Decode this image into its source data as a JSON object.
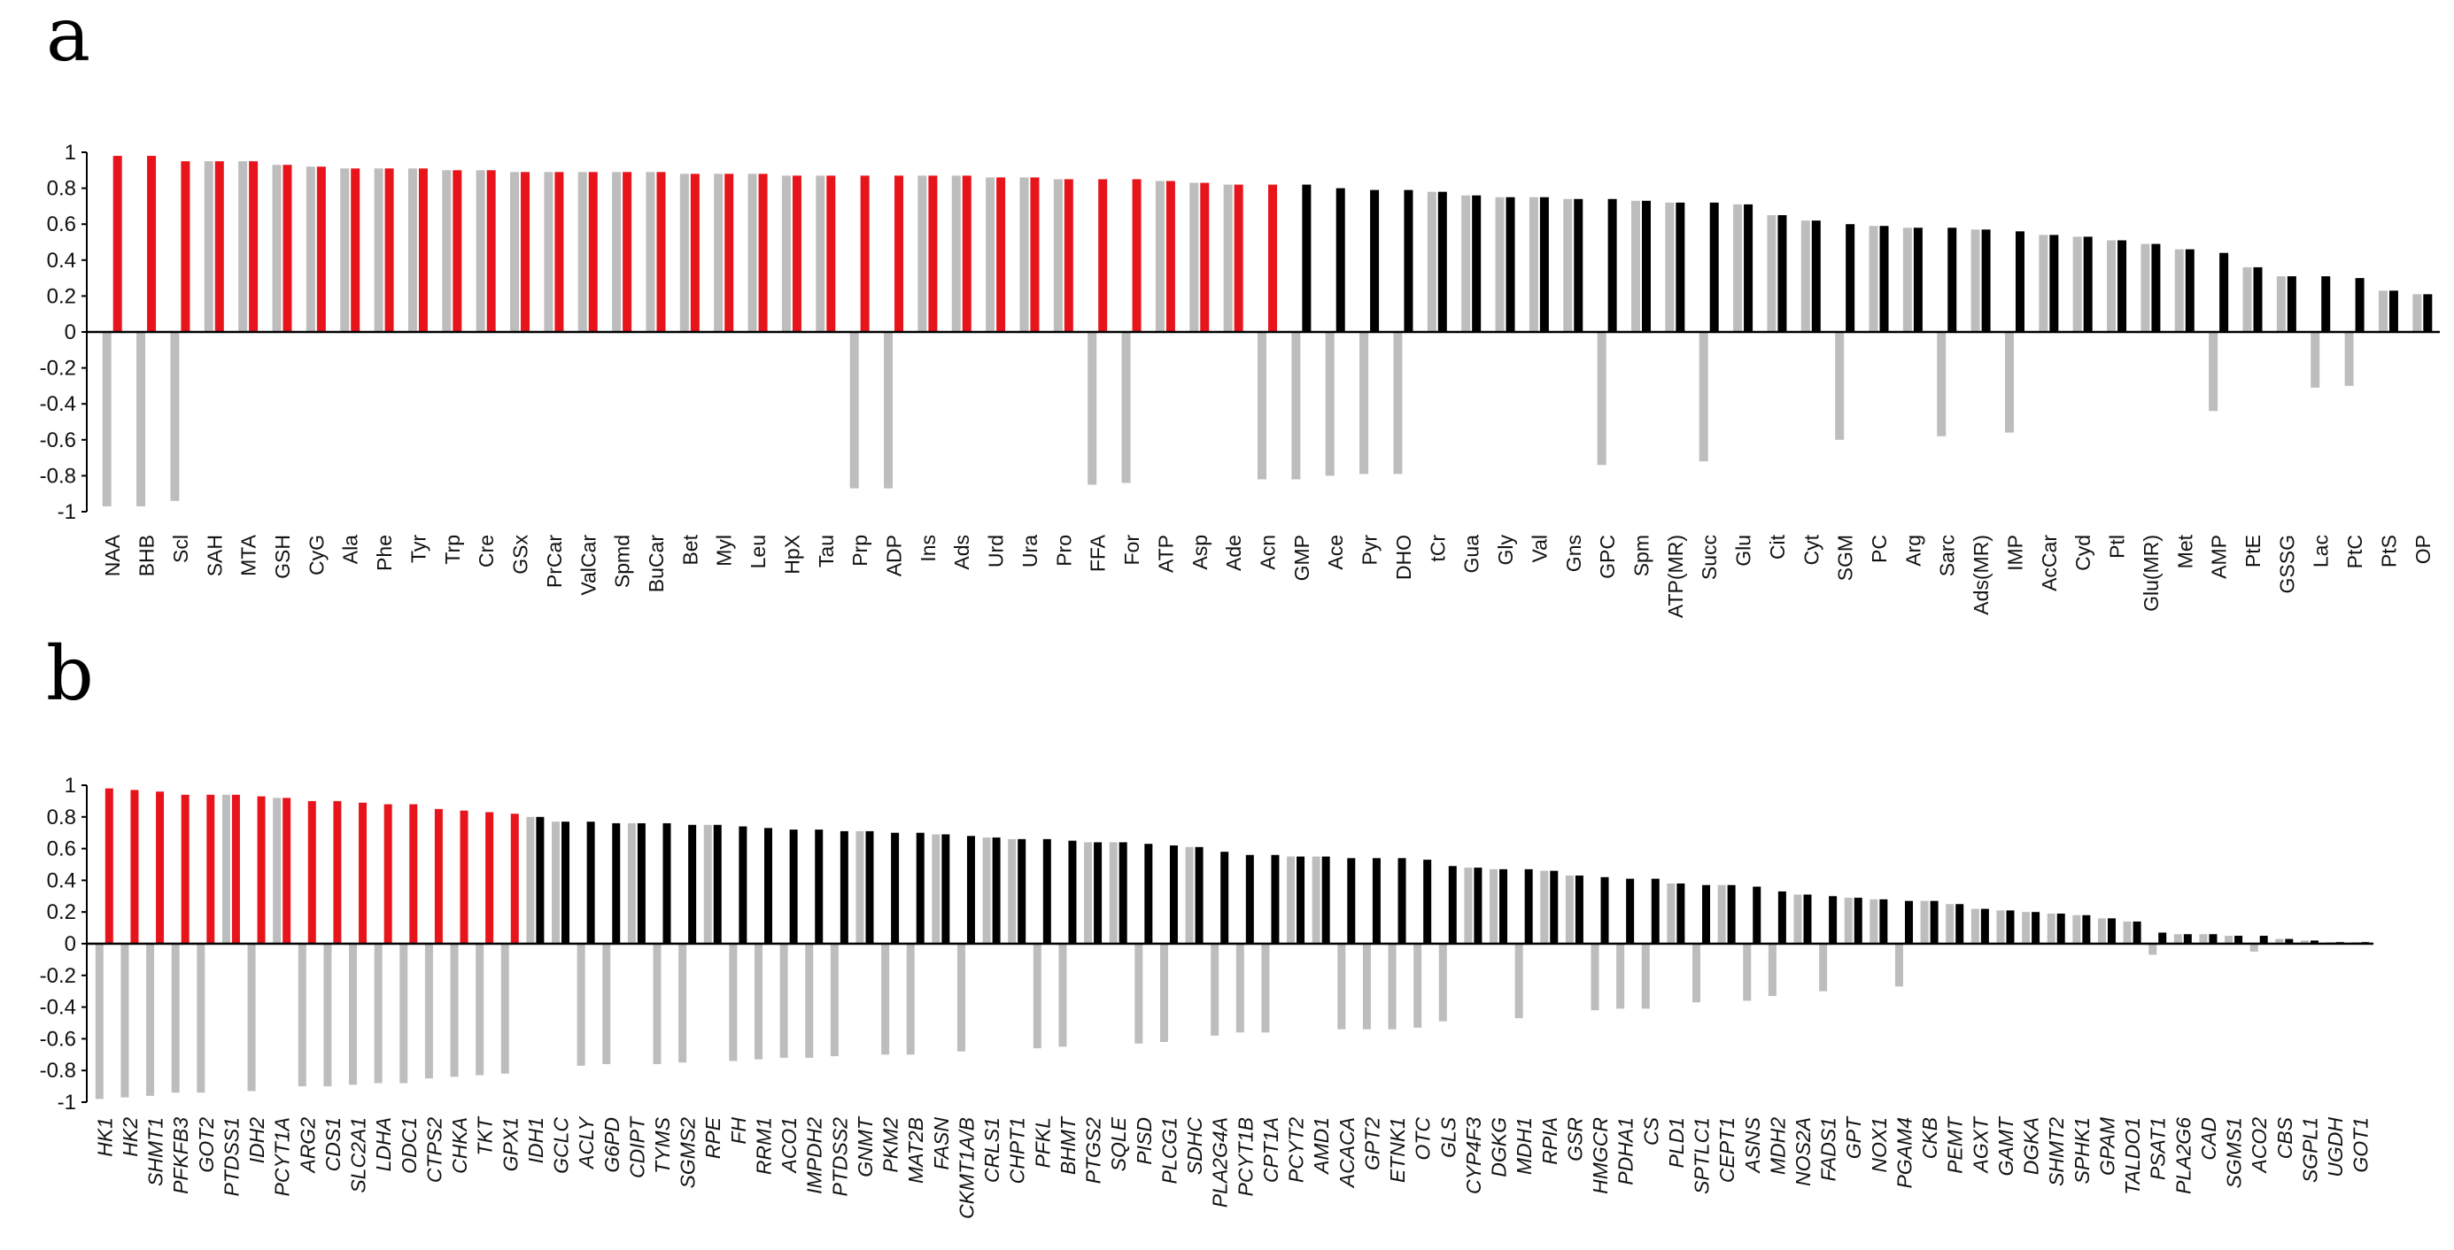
{
  "panels": [
    {
      "letter": "a"
    },
    {
      "letter": "b"
    }
  ],
  "colors": {
    "highlight": "#e8141b",
    "normal": "#000000",
    "secondary": "#bdbdbd",
    "axis": "#000000"
  },
  "chart_data": [
    {
      "type": "bar",
      "panel": "a",
      "title": "",
      "xlabel": "",
      "ylabel": "",
      "ylim": [
        -1,
        1
      ],
      "yticks": [
        "1",
        "0.8",
        "0.6",
        "0.4",
        "0.2",
        "0",
        "-0.2",
        "-0.4",
        "-0.6",
        "-0.8",
        "-1"
      ],
      "ytick_values": [
        1,
        0.8,
        0.6,
        0.4,
        0.2,
        0,
        -0.2,
        -0.4,
        -0.6,
        -0.8,
        -1
      ],
      "categories": [
        "NAA",
        "BHB",
        "Scl",
        "SAH",
        "MTA",
        "GSH",
        "CyG",
        "Ala",
        "Phe",
        "Tyr",
        "Trp",
        "Cre",
        "GSx",
        "PrCar",
        "ValCar",
        "Spmd",
        "BuCar",
        "Bet",
        "Myl",
        "Leu",
        "HpX",
        "Tau",
        "Prp",
        "ADP",
        "Ins",
        "Ads",
        "Urd",
        "Ura",
        "Pro",
        "FFA",
        "For",
        "ATP",
        "Asp",
        "Ade",
        "Acn",
        "GMP",
        "Ace",
        "Pyr",
        "DHO",
        "tCr",
        "Gua",
        "Gly",
        "Val",
        "Gns",
        "GPC",
        "Spm",
        "ATP(MR)",
        "Succ",
        "Glu",
        "Cit",
        "Cyt",
        "SGM",
        "PC",
        "Arg",
        "Sarc",
        "Ads(MR)",
        "IMP",
        "AcCar",
        "Cyd",
        "Ptl",
        "Glu(MR)",
        "Met",
        "AMP",
        "PtE",
        "GSSG",
        "Lac",
        "PtC",
        "PtS",
        "OP"
      ],
      "highlighted_count": 35,
      "series": [
        {
          "name": "primary",
          "values": [
            0.98,
            0.98,
            0.95,
            0.95,
            0.95,
            0.93,
            0.92,
            0.91,
            0.91,
            0.91,
            0.9,
            0.9,
            0.89,
            0.89,
            0.89,
            0.89,
            0.89,
            0.88,
            0.88,
            0.88,
            0.87,
            0.87,
            0.87,
            0.87,
            0.87,
            0.87,
            0.86,
            0.86,
            0.85,
            0.85,
            0.85,
            0.84,
            0.83,
            0.82,
            0.82,
            0.82,
            0.8,
            0.79,
            0.79,
            0.78,
            0.76,
            0.75,
            0.75,
            0.74,
            0.74,
            0.73,
            0.72,
            0.72,
            0.71,
            0.65,
            0.62,
            0.6,
            0.59,
            0.58,
            0.58,
            0.57,
            0.56,
            0.54,
            0.53,
            0.51,
            0.49,
            0.46,
            0.44,
            0.36,
            0.31,
            0.31,
            0.3,
            0.23,
            0.21
          ]
        },
        {
          "name": "secondary",
          "values": [
            -0.97,
            -0.97,
            -0.94,
            0.95,
            0.95,
            0.93,
            0.92,
            0.91,
            0.91,
            0.91,
            0.9,
            0.9,
            0.89,
            0.89,
            0.89,
            0.89,
            0.89,
            0.88,
            0.88,
            0.88,
            0.87,
            0.87,
            -0.87,
            -0.87,
            0.87,
            0.87,
            0.86,
            0.86,
            0.85,
            -0.85,
            -0.84,
            0.84,
            0.83,
            0.82,
            -0.82,
            -0.82,
            -0.8,
            -0.79,
            -0.79,
            0.78,
            0.76,
            0.75,
            0.75,
            0.74,
            -0.74,
            0.73,
            0.72,
            -0.72,
            0.71,
            0.65,
            0.62,
            -0.6,
            0.59,
            0.58,
            -0.58,
            0.57,
            -0.56,
            0.54,
            0.53,
            0.51,
            0.49,
            0.46,
            -0.44,
            0.36,
            0.31,
            -0.31,
            -0.3,
            0.23,
            0.21
          ]
        }
      ]
    },
    {
      "type": "bar",
      "panel": "b",
      "title": "",
      "xlabel": "",
      "ylabel": "",
      "ylim": [
        -1,
        1
      ],
      "yticks": [
        "1",
        "0.8",
        "0.6",
        "0.4",
        "0.2",
        "0",
        "-0.2",
        "-0.4",
        "-0.6",
        "-0.8",
        "-1"
      ],
      "ytick_values": [
        1,
        0.8,
        0.6,
        0.4,
        0.2,
        0,
        -0.2,
        -0.4,
        -0.6,
        -0.8,
        -1
      ],
      "categories": [
        "HK1",
        "HK2",
        "SHMT1",
        "PFKFB3",
        "GOT2",
        "PTDSS1",
        "IDH2",
        "PCYT1A",
        "ARG2",
        "CDS1",
        "SLC2A1",
        "LDHA",
        "ODC1",
        "CTPS2",
        "CHKA",
        "TKT",
        "GPX1",
        "IDH1",
        "GCLC",
        "ACLY",
        "G6PD",
        "CDIPT",
        "TYMS",
        "SGMS2",
        "RPE",
        "FH",
        "RRM1",
        "ACO1",
        "IMPDH2",
        "PTDSS2",
        "GNMT",
        "PKM2",
        "MAT2B",
        "FASN",
        "CKMT1A/B",
        "CRLS1",
        "CHPT1",
        "PFKL",
        "BHMT",
        "PTGS2",
        "SQLE",
        "PISD",
        "PLCG1",
        "SDHC",
        "PLA2G4A",
        "PCYT1B",
        "CPT1A",
        "PCYT2",
        "AMD1",
        "ACACA",
        "GPT2",
        "ETNK1",
        "OTC",
        "GLS",
        "CYP4F3",
        "DGKG",
        "MDH1",
        "RPIA",
        "GSR",
        "HMGCR",
        "PDHA1",
        "CS",
        "PLD1",
        "SPTLC1",
        "CEPT1",
        "ASNS",
        "MDH2",
        "NOS2A",
        "FADS1",
        "GPT",
        "NOX1",
        "PGAM4",
        "CKB",
        "PEMT",
        "AGXT",
        "GAMT",
        "DGKA",
        "SHMT2",
        "SPHK1",
        "GPAM",
        "TALDO1",
        "PSAT1",
        "PLA2G6",
        "CAD",
        "SGMS1",
        "ACO2",
        "CBS",
        "SGPL1",
        "UGDH",
        "GOT1"
      ],
      "highlighted_count": 17,
      "series": [
        {
          "name": "primary",
          "values": [
            0.98,
            0.97,
            0.96,
            0.94,
            0.94,
            0.94,
            0.93,
            0.92,
            0.9,
            0.9,
            0.89,
            0.88,
            0.88,
            0.85,
            0.84,
            0.83,
            0.82,
            0.8,
            0.77,
            0.77,
            0.76,
            0.76,
            0.76,
            0.75,
            0.75,
            0.74,
            0.73,
            0.72,
            0.72,
            0.71,
            0.71,
            0.7,
            0.7,
            0.69,
            0.68,
            0.67,
            0.66,
            0.66,
            0.65,
            0.64,
            0.64,
            0.63,
            0.62,
            0.61,
            0.58,
            0.56,
            0.56,
            0.55,
            0.55,
            0.54,
            0.54,
            0.54,
            0.53,
            0.49,
            0.48,
            0.47,
            0.47,
            0.46,
            0.43,
            0.42,
            0.41,
            0.41,
            0.38,
            0.37,
            0.37,
            0.36,
            0.33,
            0.31,
            0.3,
            0.29,
            0.28,
            0.27,
            0.27,
            0.25,
            0.22,
            0.21,
            0.2,
            0.19,
            0.18,
            0.16,
            0.14,
            0.07,
            0.06,
            0.06,
            0.05,
            0.05,
            0.03,
            0.02,
            0.01,
            0.01
          ]
        },
        {
          "name": "secondary",
          "values": [
            -0.98,
            -0.97,
            -0.96,
            -0.94,
            -0.94,
            0.94,
            -0.93,
            0.92,
            -0.9,
            -0.9,
            -0.89,
            -0.88,
            -0.88,
            -0.85,
            -0.84,
            -0.83,
            -0.82,
            0.8,
            0.77,
            -0.77,
            -0.76,
            0.76,
            -0.76,
            -0.75,
            0.75,
            -0.74,
            -0.73,
            -0.72,
            -0.72,
            -0.71,
            0.71,
            -0.7,
            -0.7,
            0.69,
            -0.68,
            0.67,
            0.66,
            -0.66,
            -0.65,
            0.64,
            0.64,
            -0.63,
            -0.62,
            0.61,
            -0.58,
            -0.56,
            -0.56,
            0.55,
            0.55,
            -0.54,
            -0.54,
            -0.54,
            -0.53,
            -0.49,
            0.48,
            0.47,
            -0.47,
            0.46,
            0.43,
            -0.42,
            -0.41,
            -0.41,
            0.38,
            -0.37,
            0.37,
            -0.36,
            -0.33,
            0.31,
            -0.3,
            0.29,
            0.28,
            -0.27,
            0.27,
            0.25,
            0.22,
            0.21,
            0.2,
            0.19,
            0.18,
            0.16,
            0.14,
            -0.07,
            0.06,
            0.06,
            0.05,
            -0.05,
            0.03,
            0.02,
            0.01,
            0.01
          ]
        }
      ]
    }
  ]
}
